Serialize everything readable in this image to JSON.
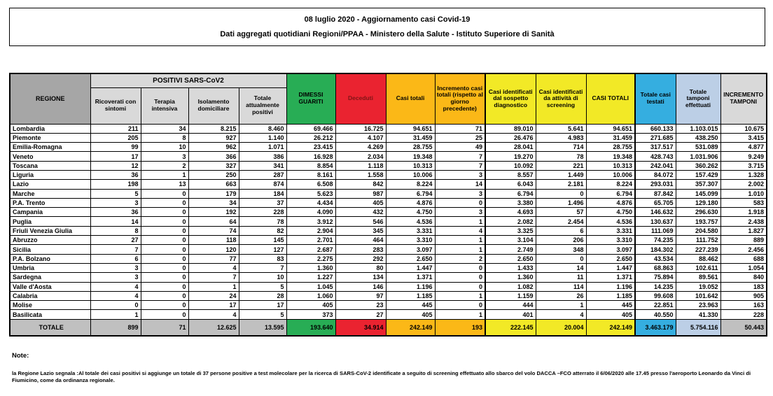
{
  "title": {
    "line1": "08 luglio 2020 - Aggiornamento casi Covid-19",
    "line2": "Dati aggregati quotidiani Regioni/PPAA - Ministero della Salute - Istituto Superiore di Sanità"
  },
  "colors": {
    "header_gray": "#A6A6A6",
    "subheader_gray": "#D9D9D9",
    "total_gray": "#C0C0C0",
    "green": "#28AD55",
    "red": "#EA2330",
    "orange": "#FBB817",
    "yellow": "#F2E926",
    "blue": "#35AEE0",
    "light_blue": "#BCCFE6"
  },
  "table": {
    "header": {
      "regione": "REGIONE",
      "positivi_group": "POSITIVI SARS-CoV2",
      "sub": [
        "Ricoverati con sintomi",
        "Terapia intensiva",
        "Isolamento domiciliare",
        "Totale attualmente positivi"
      ],
      "dimessi": "DIMESSI GUARITI",
      "deceduti": "Deceduti",
      "casi_totali": "Casi totali",
      "incremento_casi": "Incremento casi totali (rispetto al giorno precedente)",
      "sospetto": "Casi identificati dal sospetto diagnostico",
      "screening": "Casi identificati da attività di screening",
      "casi_totali_2": "CASI TOTALI",
      "testati": "Totale casi testati",
      "tamponi": "Totale tamponi effettuati",
      "incremento_tamponi": "INCREMENTO TAMPONI"
    },
    "rows": [
      {
        "regione": "Lombardia",
        "values": [
          "211",
          "34",
          "8.215",
          "8.460",
          "69.466",
          "16.725",
          "94.651",
          "71",
          "89.010",
          "5.641",
          "94.651",
          "660.133",
          "1.103.015",
          "10.675"
        ]
      },
      {
        "regione": "Piemonte",
        "values": [
          "205",
          "8",
          "927",
          "1.140",
          "26.212",
          "4.107",
          "31.459",
          "25",
          "26.476",
          "4.983",
          "31.459",
          "271.685",
          "438.250",
          "3.415"
        ]
      },
      {
        "regione": "Emilia-Romagna",
        "values": [
          "99",
          "10",
          "962",
          "1.071",
          "23.415",
          "4.269",
          "28.755",
          "49",
          "28.041",
          "714",
          "28.755",
          "317.517",
          "531.089",
          "4.877"
        ]
      },
      {
        "regione": "Veneto",
        "values": [
          "17",
          "3",
          "366",
          "386",
          "16.928",
          "2.034",
          "19.348",
          "7",
          "19.270",
          "78",
          "19.348",
          "428.743",
          "1.031.906",
          "9.249"
        ]
      },
      {
        "regione": "Toscana",
        "values": [
          "12",
          "2",
          "327",
          "341",
          "8.854",
          "1.118",
          "10.313",
          "7",
          "10.092",
          "221",
          "10.313",
          "242.041",
          "360.262",
          "3.715"
        ]
      },
      {
        "regione": "Liguria",
        "values": [
          "36",
          "1",
          "250",
          "287",
          "8.161",
          "1.558",
          "10.006",
          "3",
          "8.557",
          "1.449",
          "10.006",
          "84.072",
          "157.429",
          "1.328"
        ]
      },
      {
        "regione": "Lazio",
        "values": [
          "198",
          "13",
          "663",
          "874",
          "6.508",
          "842",
          "8.224",
          "14",
          "6.043",
          "2.181",
          "8.224",
          "293.031",
          "357.307",
          "2.002"
        ]
      },
      {
        "regione": "Marche",
        "values": [
          "5",
          "0",
          "179",
          "184",
          "5.623",
          "987",
          "6.794",
          "3",
          "6.794",
          "0",
          "6.794",
          "87.842",
          "145.099",
          "1.010"
        ]
      },
      {
        "regione": "P.A. Trento",
        "values": [
          "3",
          "0",
          "34",
          "37",
          "4.434",
          "405",
          "4.876",
          "0",
          "3.380",
          "1.496",
          "4.876",
          "65.705",
          "129.180",
          "583"
        ]
      },
      {
        "regione": "Campania",
        "values": [
          "36",
          "0",
          "192",
          "228",
          "4.090",
          "432",
          "4.750",
          "3",
          "4.693",
          "57",
          "4.750",
          "146.632",
          "296.630",
          "1.918"
        ]
      },
      {
        "regione": "Puglia",
        "values": [
          "14",
          "0",
          "64",
          "78",
          "3.912",
          "546",
          "4.536",
          "1",
          "2.082",
          "2.454",
          "4.536",
          "130.637",
          "193.757",
          "2.438"
        ]
      },
      {
        "regione": "Friuli Venezia Giulia",
        "values": [
          "8",
          "0",
          "74",
          "82",
          "2.904",
          "345",
          "3.331",
          "4",
          "3.325",
          "6",
          "3.331",
          "111.069",
          "204.580",
          "1.827"
        ]
      },
      {
        "regione": "Abruzzo",
        "values": [
          "27",
          "0",
          "118",
          "145",
          "2.701",
          "464",
          "3.310",
          "1",
          "3.104",
          "206",
          "3.310",
          "74.235",
          "111.752",
          "889"
        ]
      },
      {
        "regione": "Sicilia",
        "values": [
          "7",
          "0",
          "120",
          "127",
          "2.687",
          "283",
          "3.097",
          "1",
          "2.749",
          "348",
          "3.097",
          "184.302",
          "227.239",
          "2.456"
        ]
      },
      {
        "regione": "P.A. Bolzano",
        "values": [
          "6",
          "0",
          "77",
          "83",
          "2.275",
          "292",
          "2.650",
          "2",
          "2.650",
          "0",
          "2.650",
          "43.534",
          "88.462",
          "688"
        ]
      },
      {
        "regione": "Umbria",
        "values": [
          "3",
          "0",
          "4",
          "7",
          "1.360",
          "80",
          "1.447",
          "0",
          "1.433",
          "14",
          "1.447",
          "68.863",
          "102.611",
          "1.054"
        ]
      },
      {
        "regione": "Sardegna",
        "values": [
          "3",
          "0",
          "7",
          "10",
          "1.227",
          "134",
          "1.371",
          "0",
          "1.360",
          "11",
          "1.371",
          "75.894",
          "89.561",
          "840"
        ]
      },
      {
        "regione": "Valle d'Aosta",
        "values": [
          "4",
          "0",
          "1",
          "5",
          "1.045",
          "146",
          "1.196",
          "0",
          "1.082",
          "114",
          "1.196",
          "14.235",
          "19.052",
          "183"
        ]
      },
      {
        "regione": "Calabria",
        "values": [
          "4",
          "0",
          "24",
          "28",
          "1.060",
          "97",
          "1.185",
          "1",
          "1.159",
          "26",
          "1.185",
          "99.608",
          "101.642",
          "905"
        ]
      },
      {
        "regione": "Molise",
        "values": [
          "0",
          "0",
          "17",
          "17",
          "405",
          "23",
          "445",
          "0",
          "444",
          "1",
          "445",
          "22.851",
          "23.963",
          "163"
        ]
      },
      {
        "regione": "Basilicata",
        "values": [
          "1",
          "0",
          "4",
          "5",
          "373",
          "27",
          "405",
          "1",
          "401",
          "4",
          "405",
          "40.550",
          "41.330",
          "228"
        ]
      }
    ],
    "total_row": {
      "label": "TOTALE",
      "values": [
        "899",
        "71",
        "12.625",
        "13.595",
        "193.640",
        "34.914",
        "242.149",
        "193",
        "222.145",
        "20.004",
        "242.149",
        "3.463.179",
        "5.754.116",
        "50.443"
      ]
    }
  },
  "note": {
    "label": "Note:",
    "body": "la Regione Lazio segnala :Al totale dei casi positivi si aggiunge un totale di 37 persone positive a test molecolare per la ricerca di SARS-CoV-2 identificate a seguito di screening effettuato allo sbarco del volo DACCA –FCO atterrato il 6/06/2020  alle 17.45 presso l'aeroporto Leonardo da Vinci di Fiumicino, come da ordinanza regionale."
  }
}
